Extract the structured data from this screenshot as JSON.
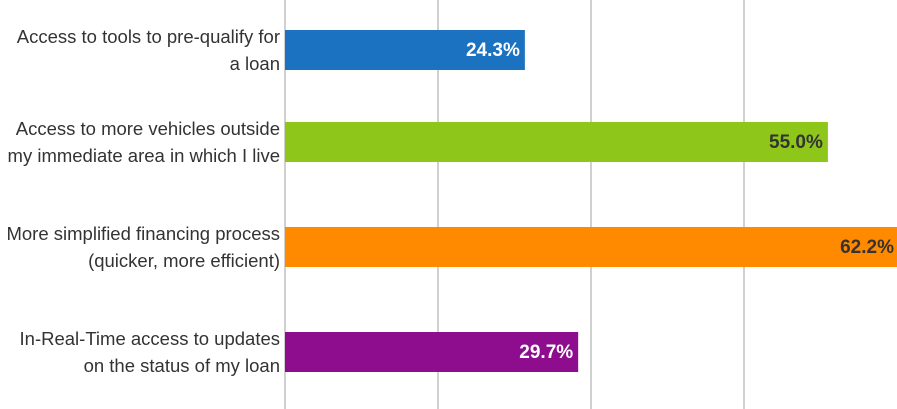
{
  "chart_data": {
    "type": "hbar",
    "categories": [
      "Access to tools to pre-qualify for a loan",
      "Access to more vehicles outside my immediate area in which I live",
      "More simplified financing process (quicker, more efficient)",
      "In-Real-Time access to updates on the status of my loan"
    ],
    "values": [
      24.3,
      55.0,
      62.2,
      29.7
    ],
    "value_labels": [
      "24.3%",
      "55.0%",
      "62.2%",
      "29.7%"
    ],
    "colors": [
      "#1a72c1",
      "#8ec719",
      "#ff8a00",
      "#8e0d8e"
    ],
    "value_label_colors": [
      "#ffffff",
      "#333333",
      "#333333",
      "#ffffff"
    ],
    "xlim": [
      0,
      62
    ],
    "xticks": [
      0,
      15.5,
      31,
      46.5
    ],
    "grid": true
  }
}
